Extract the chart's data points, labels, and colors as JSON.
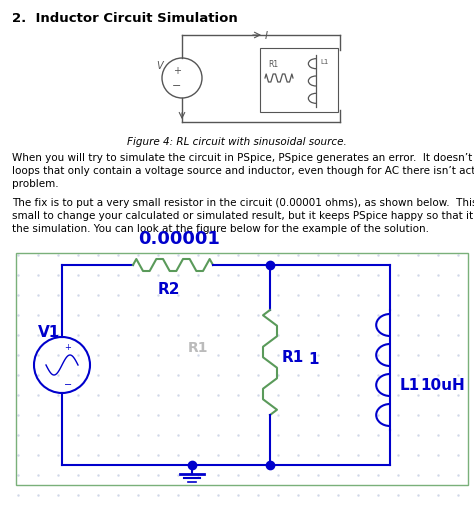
{
  "title": "2.  Inductor Circuit Simulation",
  "fig_caption": "Figure 4: RL circuit with sinusoidal source.",
  "body_text1": "When you will try to simulate the circuit in PSpice, PSpice generates an error.  It doesn’t like\nloops that only contain a voltage source and inductor, even though for AC there isn’t actually a\nproblem.",
  "body_text2": "The fix is to put a very small resistor in the circuit (0.00001 ohms), as shown below.  This is too\nsmall to change your calculated or simulated result, but it keeps PSpice happy so that it starts\nthe simulation. You can look at the figure below for the example of the solution.",
  "blue_color": "#0000cc",
  "green_color": "#5a9a5a",
  "wire_color": "#5a8a5a",
  "bg_color": "#ffffff",
  "dot_color": "#cccccc",
  "label_0p00001": "0.00001",
  "label_v1": "V1",
  "label_r2": "R2",
  "label_r1": "R1",
  "label_1": "1",
  "label_l1": "L1",
  "label_10uh": "10uH",
  "label_r1_gray": "R1"
}
